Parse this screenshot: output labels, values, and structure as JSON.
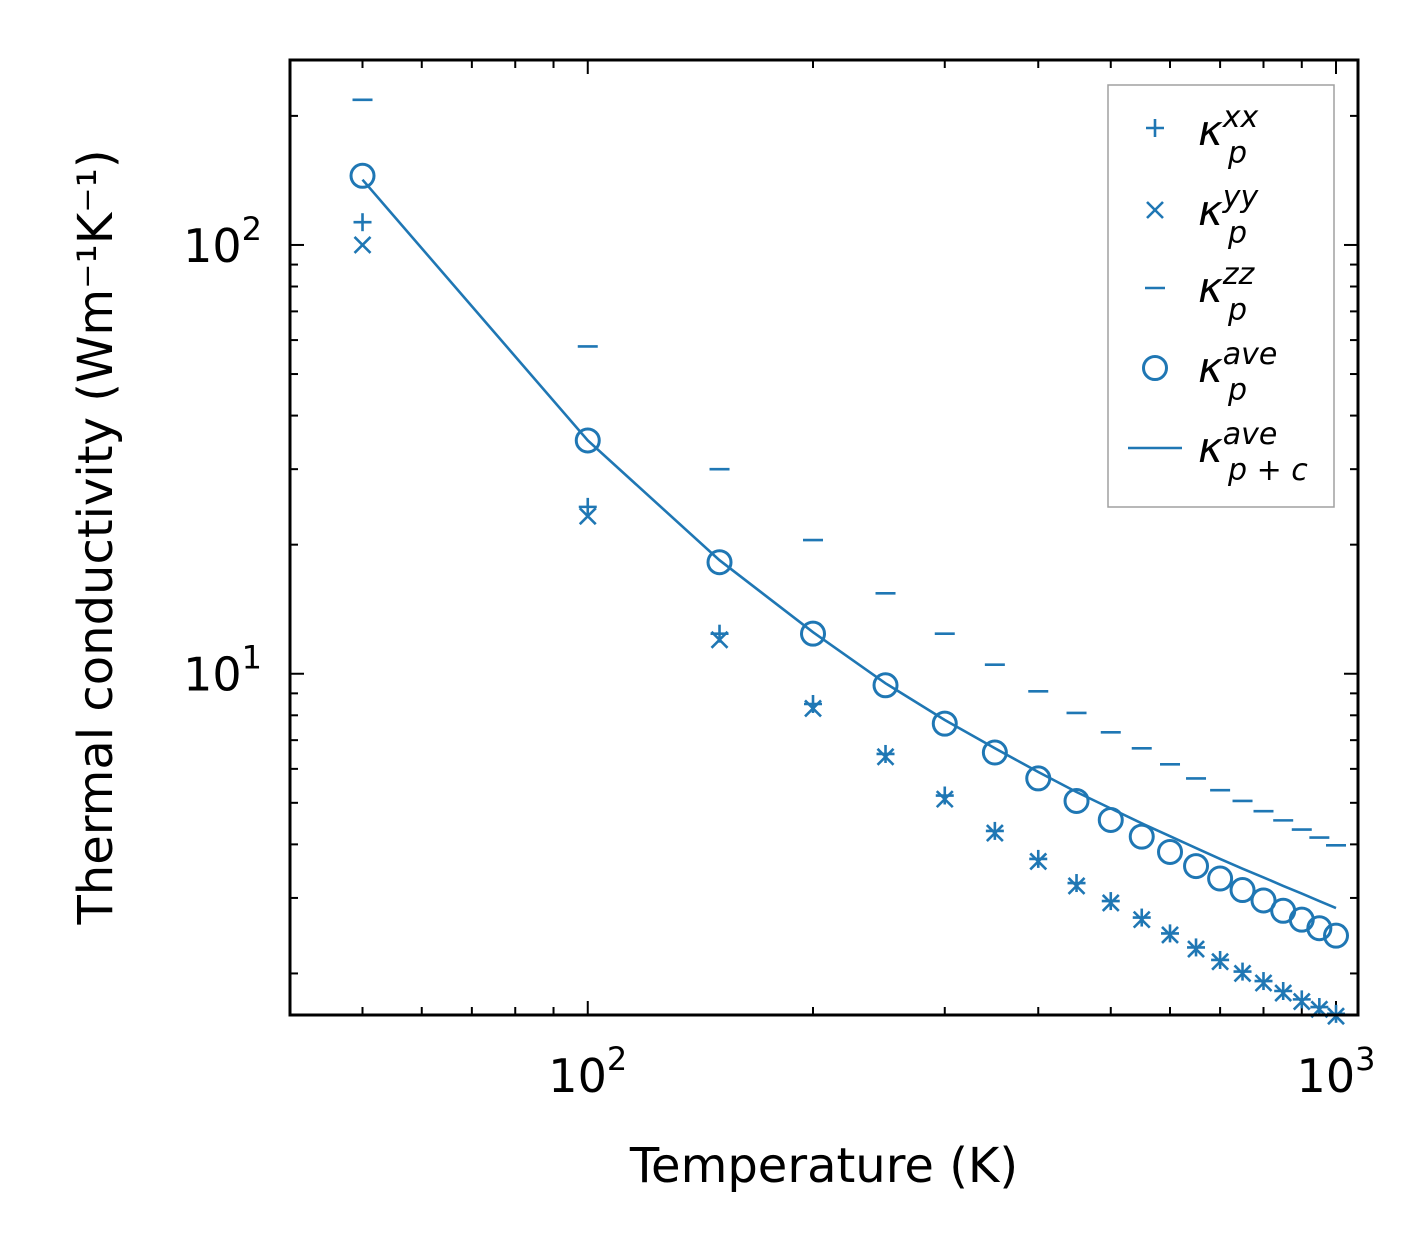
{
  "chart_data": {
    "type": "scatter",
    "xscale": "log",
    "yscale": "log",
    "xlabel": "Temperature (K)",
    "ylabel": "Thermal conductivity (Wm⁻¹K⁻¹)",
    "xlim": [
      40,
      1070
    ],
    "ylim": [
      1.6,
      270
    ],
    "xticks": [
      {
        "base": "10",
        "exp": "2",
        "value": 100
      },
      {
        "base": "10",
        "exp": "3",
        "value": 1000
      }
    ],
    "yticks": [
      {
        "base": "10",
        "exp": "1",
        "value": 10
      },
      {
        "base": "10",
        "exp": "2",
        "value": 100
      }
    ],
    "legend_position": "top-right",
    "color": "#1f77b4",
    "series": [
      {
        "name": "kappa_p_xx",
        "label": {
          "base": "κ",
          "sub": "p",
          "sup": "xx"
        },
        "marker": "plus",
        "x": [
          50,
          100,
          150,
          200,
          250,
          300,
          350,
          400,
          450,
          500,
          550,
          600,
          650,
          700,
          750,
          800,
          850,
          900,
          950,
          1000
        ],
        "y": [
          113,
          24.5,
          12.4,
          8.5,
          6.5,
          5.2,
          4.3,
          3.7,
          3.25,
          2.95,
          2.7,
          2.48,
          2.3,
          2.15,
          2.02,
          1.92,
          1.82,
          1.74,
          1.67,
          1.61
        ]
      },
      {
        "name": "kappa_p_yy",
        "label": {
          "base": "κ",
          "sub": "p",
          "sup": "yy"
        },
        "marker": "x",
        "x": [
          50,
          100,
          150,
          200,
          250,
          300,
          350,
          400,
          450,
          500,
          550,
          600,
          650,
          700,
          750,
          800,
          850,
          900,
          950,
          1000
        ],
        "y": [
          100,
          23.3,
          12,
          8.3,
          6.4,
          5.1,
          4.25,
          3.65,
          3.2,
          2.92,
          2.67,
          2.46,
          2.28,
          2.13,
          2.0,
          1.9,
          1.8,
          1.72,
          1.65,
          1.59
        ]
      },
      {
        "name": "kappa_p_zz",
        "label": {
          "base": "κ",
          "sub": "p",
          "sup": "zz"
        },
        "marker": "hline",
        "x": [
          50,
          100,
          150,
          200,
          250,
          300,
          350,
          400,
          450,
          500,
          550,
          600,
          650,
          700,
          750,
          800,
          850,
          900,
          950,
          1000
        ],
        "y": [
          218,
          58,
          30,
          20.5,
          15.4,
          12.4,
          10.5,
          9.1,
          8.1,
          7.3,
          6.7,
          6.15,
          5.7,
          5.35,
          5.05,
          4.78,
          4.55,
          4.33,
          4.15,
          3.98
        ]
      },
      {
        "name": "kappa_p_ave",
        "label": {
          "base": "κ",
          "sub": "p",
          "sup": "ave"
        },
        "marker": "circle",
        "x": [
          50,
          100,
          150,
          200,
          250,
          300,
          350,
          400,
          450,
          500,
          550,
          600,
          650,
          700,
          750,
          800,
          850,
          900,
          950,
          1000
        ],
        "y": [
          145,
          35,
          18.2,
          12.4,
          9.4,
          7.65,
          6.55,
          5.7,
          5.05,
          4.56,
          4.17,
          3.84,
          3.56,
          3.33,
          3.13,
          2.96,
          2.8,
          2.67,
          2.55,
          2.45
        ]
      },
      {
        "name": "kappa_p+c_ave",
        "label": {
          "base": "κ",
          "sub": "p + c",
          "sup": "ave"
        },
        "marker": "line",
        "x": [
          50,
          100,
          150,
          200,
          250,
          300,
          350,
          400,
          450,
          500,
          550,
          600,
          650,
          700,
          750,
          800,
          850,
          900,
          950,
          1000
        ],
        "y": [
          142,
          35,
          18.4,
          12.5,
          9.5,
          7.8,
          6.7,
          5.9,
          5.3,
          4.85,
          4.48,
          4.18,
          3.92,
          3.7,
          3.51,
          3.35,
          3.2,
          3.07,
          2.95,
          2.84
        ]
      }
    ]
  }
}
